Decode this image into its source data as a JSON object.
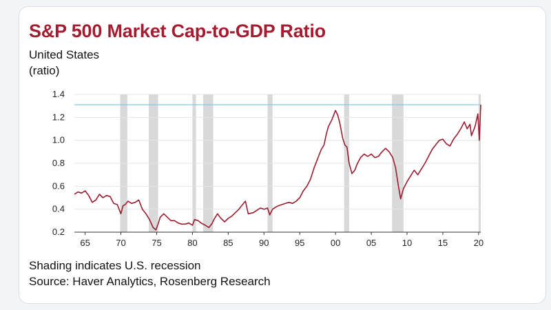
{
  "title": "S&P 500 Market Cap-to-GDP Ratio",
  "subtitle": "United States",
  "unit": "(ratio)",
  "note": "Shading indicates U.S. recession",
  "source": "Source: Haver Analytics, Rosenberg Research",
  "colors": {
    "title": "#a51c30",
    "line": "#9b1b2e",
    "reference_line": "#8ec3e6",
    "recession": "#d9d9d9"
  },
  "chart_data": {
    "type": "line",
    "title": "S&P 500 Market Cap-to-GDP Ratio",
    "subtitle": "United States",
    "ylabel": "(ratio)",
    "xlim": [
      1963.5,
      2020.3
    ],
    "ylim": [
      0.2,
      1.4
    ],
    "yticks": [
      1.4,
      1.2,
      1.0,
      0.8,
      0.6,
      0.4,
      0.2
    ],
    "ytick_labels": [
      "1.4",
      "1.2",
      "1.0",
      "0.8",
      "0.6",
      "0.4",
      "0.2"
    ],
    "xticks": [
      1965,
      1970,
      1975,
      1980,
      1985,
      1990,
      1995,
      2000,
      2005,
      2010,
      2015,
      2020
    ],
    "xtick_labels": [
      "65",
      "70",
      "75",
      "80",
      "85",
      "90",
      "95",
      "00",
      "05",
      "10",
      "15",
      "20"
    ],
    "grid": "horizontal",
    "reference_line": 1.31,
    "recessions": [
      [
        1969.9,
        1970.9
      ],
      [
        1973.9,
        1975.2
      ],
      [
        1980.0,
        1980.5
      ],
      [
        1981.5,
        1982.9
      ],
      [
        1990.5,
        1991.2
      ],
      [
        2001.2,
        2001.9
      ],
      [
        2007.9,
        2009.5
      ],
      [
        2020.0,
        2020.3
      ]
    ],
    "series": [
      {
        "x": [
          1963.5,
          1964.0,
          1964.5,
          1965.0,
          1965.5,
          1966.0,
          1966.5,
          1967.0,
          1967.5,
          1968.0,
          1968.5,
          1969.0,
          1969.5,
          1970.0,
          1970.3,
          1970.6,
          1971.0,
          1971.5,
          1972.0,
          1972.5,
          1973.0,
          1973.5,
          1974.0,
          1974.5,
          1974.9,
          1975.2,
          1975.5,
          1976.0,
          1976.5,
          1977.0,
          1977.5,
          1978.0,
          1978.5,
          1979.0,
          1979.5,
          1980.0,
          1980.3,
          1980.8,
          1981.2,
          1981.8,
          1982.3,
          1982.7,
          1983.0,
          1983.5,
          1984.0,
          1984.5,
          1985.0,
          1985.5,
          1986.0,
          1986.5,
          1987.0,
          1987.4,
          1987.8,
          1988.5,
          1989.0,
          1989.5,
          1990.0,
          1990.5,
          1990.8,
          1991.2,
          1991.7,
          1992.0,
          1992.5,
          1993.0,
          1993.5,
          1994.0,
          1994.5,
          1995.0,
          1995.5,
          1996.0,
          1996.5,
          1997.0,
          1997.5,
          1998.0,
          1998.4,
          1998.7,
          1999.0,
          1999.5,
          2000.0,
          2000.3,
          2000.6,
          2001.0,
          2001.3,
          2001.6,
          2001.9,
          2002.3,
          2002.7,
          2003.0,
          2003.5,
          2004.0,
          2004.5,
          2005.0,
          2005.5,
          2006.0,
          2006.5,
          2007.0,
          2007.5,
          2008.0,
          2008.4,
          2008.8,
          2009.1,
          2009.5,
          2010.0,
          2010.5,
          2011.0,
          2011.5,
          2012.0,
          2012.5,
          2013.0,
          2013.5,
          2014.0,
          2014.5,
          2015.0,
          2015.5,
          2016.0,
          2016.5,
          2017.0,
          2017.5,
          2018.0,
          2018.4,
          2018.8,
          2019.0,
          2019.5,
          2019.9,
          2020.1,
          2020.3
        ],
        "values": [
          0.53,
          0.55,
          0.54,
          0.56,
          0.52,
          0.46,
          0.48,
          0.53,
          0.5,
          0.52,
          0.51,
          0.45,
          0.44,
          0.36,
          0.43,
          0.44,
          0.47,
          0.45,
          0.46,
          0.48,
          0.4,
          0.36,
          0.31,
          0.24,
          0.22,
          0.27,
          0.33,
          0.36,
          0.33,
          0.3,
          0.3,
          0.28,
          0.27,
          0.27,
          0.28,
          0.26,
          0.31,
          0.3,
          0.28,
          0.26,
          0.24,
          0.27,
          0.31,
          0.36,
          0.32,
          0.29,
          0.32,
          0.34,
          0.37,
          0.4,
          0.44,
          0.47,
          0.36,
          0.37,
          0.39,
          0.41,
          0.4,
          0.41,
          0.35,
          0.4,
          0.42,
          0.43,
          0.44,
          0.45,
          0.46,
          0.45,
          0.47,
          0.5,
          0.56,
          0.6,
          0.66,
          0.76,
          0.84,
          0.92,
          0.96,
          1.05,
          1.12,
          1.18,
          1.26,
          1.22,
          1.15,
          1.02,
          0.96,
          0.94,
          0.8,
          0.71,
          0.74,
          0.79,
          0.85,
          0.88,
          0.86,
          0.88,
          0.85,
          0.86,
          0.9,
          0.93,
          0.9,
          0.85,
          0.76,
          0.6,
          0.49,
          0.58,
          0.64,
          0.69,
          0.74,
          0.7,
          0.75,
          0.8,
          0.86,
          0.92,
          0.96,
          1.0,
          1.01,
          0.97,
          0.95,
          1.01,
          1.05,
          1.1,
          1.16,
          1.1,
          1.14,
          1.04,
          1.12,
          1.23,
          1.0,
          1.31
        ]
      }
    ]
  }
}
